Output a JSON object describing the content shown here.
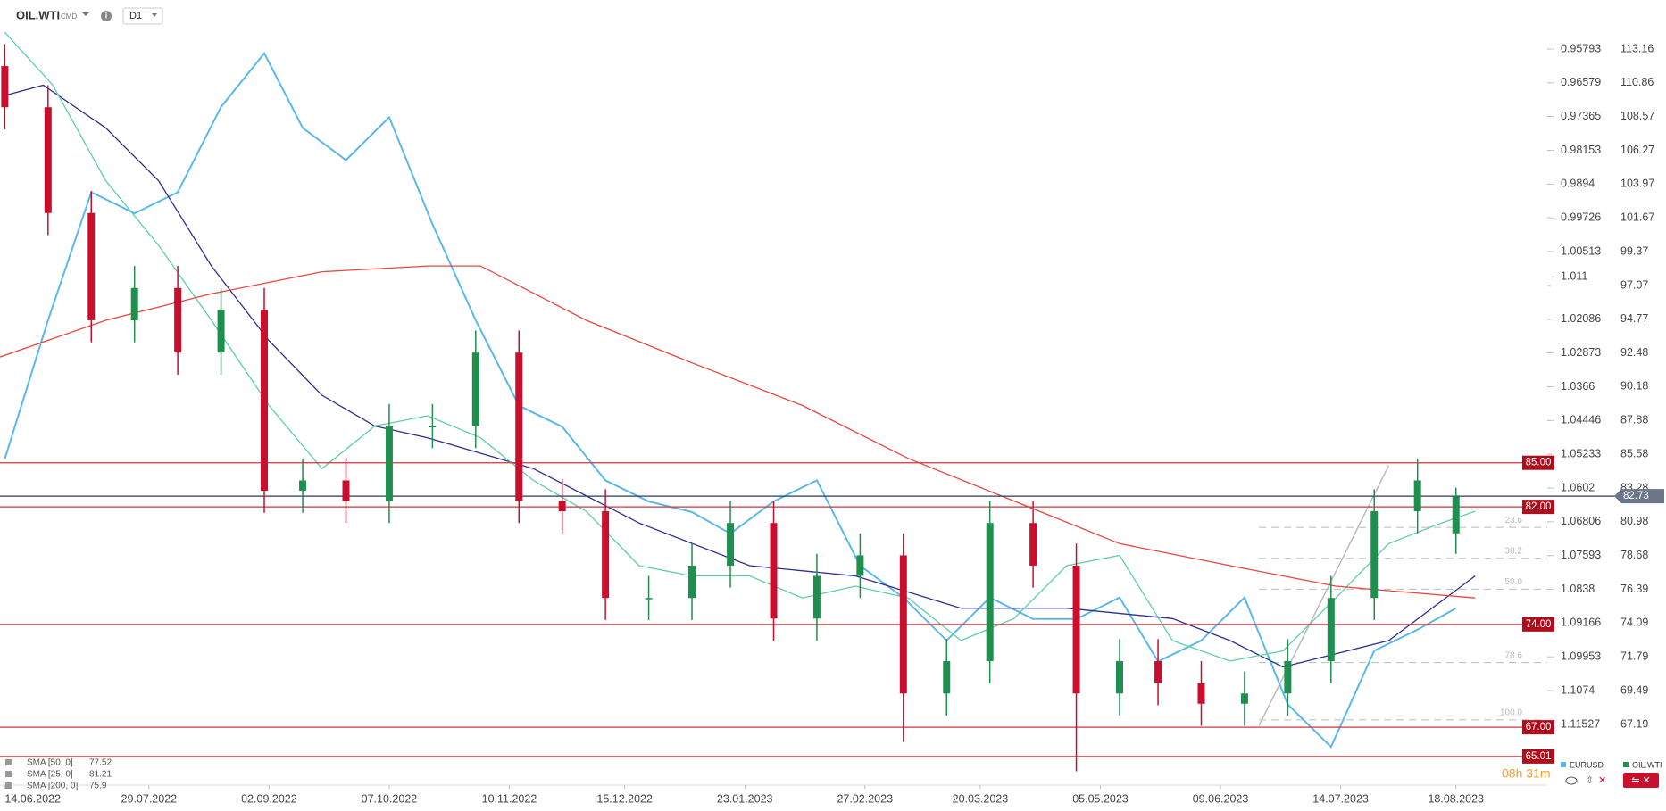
{
  "chart_data": {
    "type": "candlestick",
    "symbol": "OIL.WTI",
    "market": "CMD",
    "interval": "D1",
    "xlim": [
      0,
      322
    ],
    "xticks": [
      {
        "value": 1,
        "label": "14.06.2022"
      },
      {
        "value": 31,
        "label": "29.07.2022"
      },
      {
        "value": 56,
        "label": "02.09.2022"
      },
      {
        "value": 81,
        "label": "07.10.2022"
      },
      {
        "value": 106,
        "label": "10.11.2022"
      },
      {
        "value": 130,
        "label": "15.12.2022"
      },
      {
        "value": 155,
        "label": "23.01.2023"
      },
      {
        "value": 180,
        "label": "27.02.2023"
      },
      {
        "value": 204,
        "label": "20.03.2023"
      },
      {
        "value": 229,
        "label": "05.05.2023"
      },
      {
        "value": 254,
        "label": "09.06.2023"
      },
      {
        "value": 279,
        "label": "14.07.2023"
      },
      {
        "value": 303,
        "label": "18.08.2023"
      }
    ],
    "ylim": [
      63.06,
      116.5
    ],
    "yticks": [
      113.16,
      110.86,
      108.57,
      106.27,
      103.97,
      101.67,
      99.37,
      97.07,
      94.77,
      92.48,
      90.18,
      87.88,
      85.58,
      83.28,
      80.98,
      78.68,
      76.39,
      74.09,
      71.79,
      69.49,
      67.19
    ],
    "y2lim": [
      1.1294,
      0.9465
    ],
    "y2ticks": [
      0.95793,
      0.96579,
      0.97365,
      0.98153,
      0.9894,
      0.99726,
      1.00513,
      1.011,
      1.02086,
      1.02873,
      1.0366,
      1.04446,
      1.05233,
      1.0602,
      1.06806,
      1.07593,
      1.0838,
      1.09166,
      1.09953,
      1.1074,
      1.11527
    ],
    "series": [
      {
        "name": "OIL.WTI",
        "color": "#1e8f4e",
        "down_color": "#c8102e",
        "x": [
          1,
          10,
          19,
          28,
          37,
          46,
          55,
          63,
          72,
          81,
          90,
          99,
          108,
          117,
          126,
          135,
          144,
          152,
          161,
          170,
          179,
          188,
          197,
          206,
          215,
          224,
          233,
          241,
          250,
          259,
          268,
          277,
          286,
          295,
          303
        ],
        "open": [
          112.0,
          109.2,
          102.0,
          94.7,
          96.9,
          92.5,
          95.4,
          83.1,
          83.8,
          82.4,
          87.5,
          87.5,
          92.5,
          82.4,
          81.7,
          75.8,
          75.8,
          78.0,
          80.9,
          74.4,
          77.3,
          78.7,
          69.3,
          71.5,
          80.9,
          78.0,
          69.3,
          71.5,
          70.0,
          68.6,
          69.3,
          71.5,
          75.8,
          81.7,
          80.2
        ],
        "high": [
          113.5,
          110.7,
          103.5,
          98.4,
          98.4,
          96.9,
          96.9,
          85.3,
          85.3,
          89.0,
          89.0,
          94.0,
          94.0,
          83.9,
          83.2,
          77.3,
          79.5,
          82.4,
          82.4,
          78.8,
          80.2,
          80.2,
          73.0,
          82.4,
          82.4,
          79.5,
          73.0,
          73.0,
          71.5,
          70.8,
          73.0,
          77.3,
          83.2,
          85.3,
          83.3
        ],
        "low": [
          107.7,
          100.5,
          93.2,
          93.2,
          91.0,
          91.0,
          81.6,
          81.6,
          80.9,
          80.9,
          86.0,
          86.0,
          80.9,
          80.2,
          74.3,
          74.3,
          74.3,
          76.5,
          72.9,
          72.9,
          75.8,
          66.0,
          67.8,
          70.0,
          76.5,
          64.0,
          67.8,
          68.5,
          67.1,
          67.1,
          67.8,
          70.0,
          74.3,
          80.2,
          78.8
        ],
        "close": [
          109.2,
          102.0,
          94.7,
          96.9,
          92.5,
          95.4,
          83.1,
          83.8,
          82.4,
          87.5,
          87.5,
          92.5,
          82.4,
          81.7,
          75.8,
          75.8,
          78.0,
          80.9,
          74.4,
          77.3,
          78.7,
          69.3,
          71.5,
          80.9,
          78.0,
          69.3,
          71.5,
          70.0,
          68.6,
          69.3,
          71.5,
          75.8,
          81.7,
          83.8,
          82.7
        ]
      },
      {
        "name": "EURUSD",
        "color": "#5bb8ea",
        "axis": "y2",
        "x": [
          1,
          10,
          19,
          28,
          37,
          46,
          55,
          63,
          72,
          81,
          90,
          99,
          108,
          117,
          126,
          135,
          144,
          152,
          161,
          170,
          179,
          188,
          197,
          206,
          215,
          224,
          233,
          241,
          250,
          259,
          268,
          277,
          286,
          295,
          303
        ],
        "values": [
          1.0534,
          1.0211,
          0.9913,
          0.9962,
          0.9913,
          0.9714,
          0.9589,
          0.9763,
          0.9838,
          0.9738,
          0.9987,
          1.0211,
          1.041,
          1.0459,
          1.0584,
          1.0633,
          1.0658,
          1.0708,
          1.0633,
          1.0584,
          1.0783,
          1.0857,
          1.0957,
          1.0857,
          1.0907,
          1.0907,
          1.0857,
          1.1006,
          1.0957,
          1.0857,
          1.1106,
          1.1205,
          1.0981,
          1.0932,
          1.0882
        ]
      }
    ],
    "indicators": [
      {
        "name": "SMA [50, 0]",
        "last": 77.52,
        "color": "#2e2f8f",
        "x": [
          1,
          9,
          22,
          33,
          44,
          56,
          67,
          78,
          89,
          111,
          133,
          156,
          178,
          200,
          222,
          244,
          256,
          267,
          289,
          307
        ],
        "values": [
          110.0,
          110.7,
          107.8,
          104.2,
          98.4,
          93.3,
          89.6,
          87.5,
          86.7,
          84.6,
          80.9,
          78.0,
          77.3,
          75.1,
          75.1,
          74.4,
          72.9,
          71.1,
          72.9,
          77.3
        ]
      },
      {
        "name": "SMA [25, 0]",
        "last": 81.21,
        "color": "#5ccfa4",
        "x": [
          1,
          11,
          22,
          33,
          44,
          56,
          67,
          78,
          89,
          100,
          111,
          122,
          133,
          144,
          156,
          167,
          178,
          189,
          200,
          211,
          222,
          233,
          244,
          256,
          267,
          278,
          289,
          300,
          307
        ],
        "values": [
          114.3,
          110.7,
          104.2,
          99.8,
          94.7,
          88.9,
          84.6,
          87.5,
          88.2,
          86.7,
          83.8,
          81.7,
          78.0,
          77.3,
          77.3,
          75.8,
          76.6,
          75.8,
          72.9,
          74.4,
          78.0,
          78.7,
          72.9,
          71.5,
          72.2,
          75.8,
          79.5,
          80.9,
          81.7
        ]
      },
      {
        "name": "SMA [200, 0]",
        "last": 75.9,
        "color": "#e8473f",
        "x": [
          0,
          22,
          44,
          67,
          89,
          100,
          122,
          144,
          167,
          189,
          211,
          233,
          256,
          278,
          307
        ],
        "values": [
          92.2,
          94.7,
          96.5,
          98.0,
          98.4,
          98.4,
          94.7,
          91.8,
          88.9,
          85.3,
          82.4,
          79.5,
          78.0,
          76.6,
          75.8
        ]
      }
    ],
    "levels": [
      {
        "value": 85,
        "label": "85.00"
      },
      {
        "value": 82,
        "label": "82.00"
      },
      {
        "value": 74,
        "label": "74.00"
      },
      {
        "value": 67,
        "label": "67.00"
      },
      {
        "value": 65.01,
        "label": "65.01"
      }
    ],
    "current_price": 82.73,
    "fib_levels": [
      {
        "value": 80.6,
        "label": "23.6"
      },
      {
        "value": 78.5,
        "label": "38.2"
      },
      {
        "value": 76.4,
        "label": "50.0"
      },
      {
        "value": 71.4,
        "label": "78.6"
      },
      {
        "value": 67.5,
        "label": "100.0"
      }
    ],
    "trendline": {
      "x": [
        262,
        289
      ],
      "y": [
        67.1,
        84.8
      ]
    },
    "timer": "08h 31m"
  }
}
